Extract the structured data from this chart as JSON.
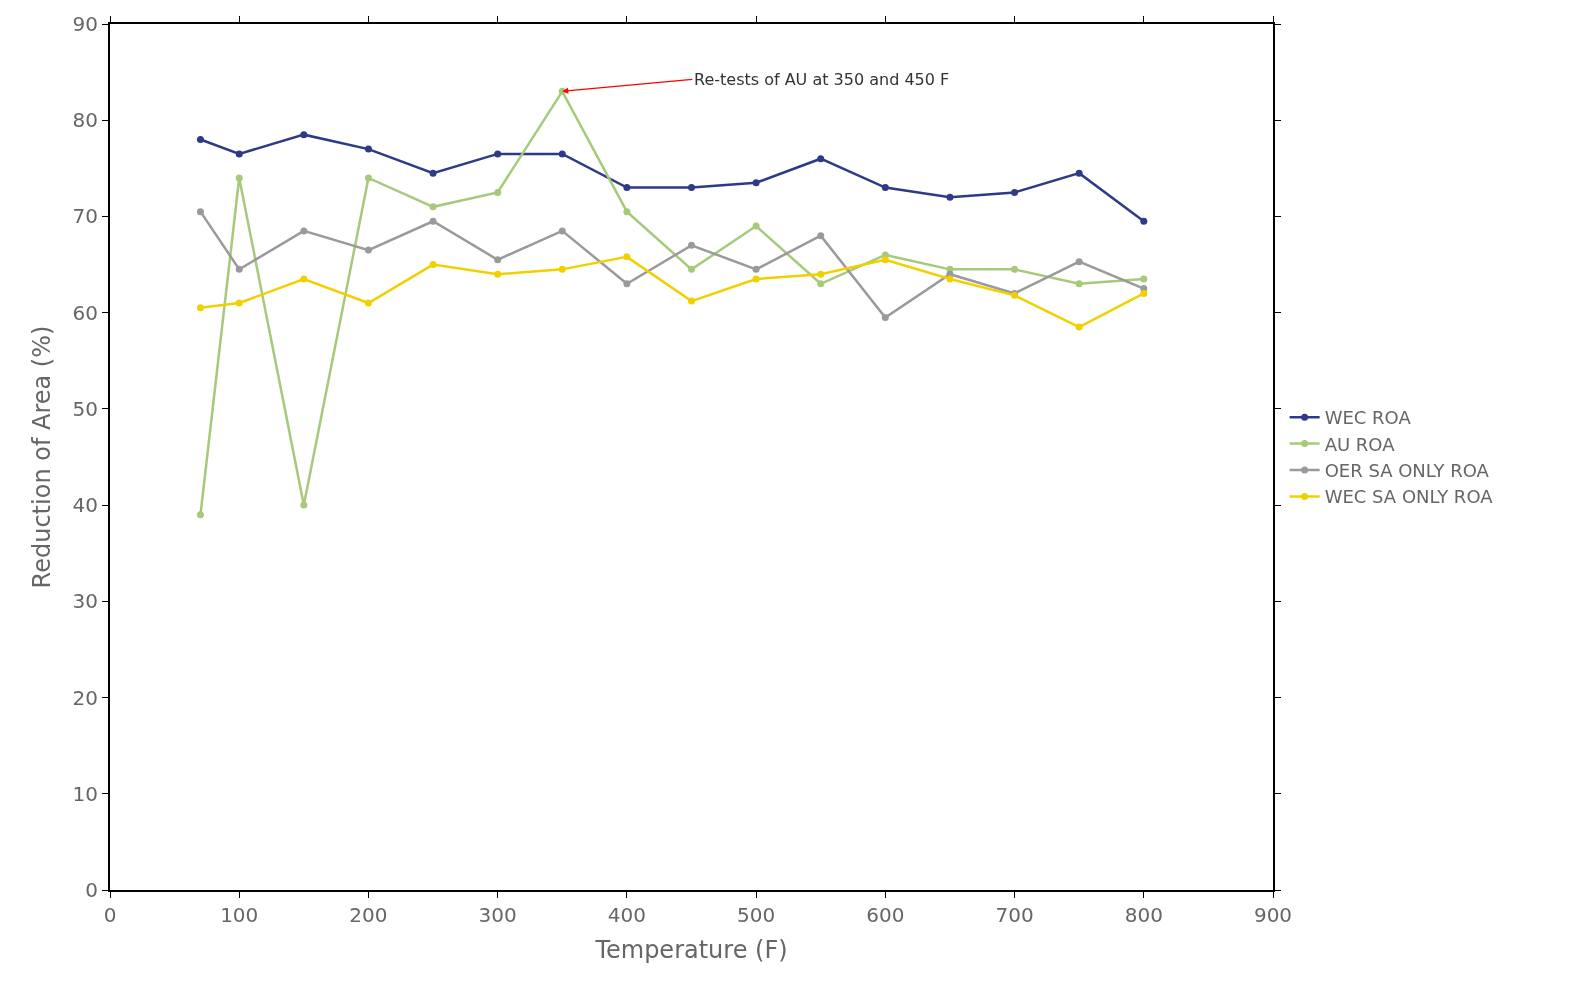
{
  "chart_data": {
    "type": "line",
    "xlabel": "Temperature (F)",
    "ylabel": "Reduction of Area (%)",
    "x": [
      70,
      100,
      150,
      200,
      250,
      300,
      350,
      400,
      450,
      500,
      550,
      600,
      650,
      700,
      750,
      800
    ],
    "series": [
      {
        "name": "WEC ROA",
        "color": "#2e3a87",
        "values": [
          78,
          76.5,
          78.5,
          77,
          74.5,
          76.5,
          76.5,
          73,
          73,
          73.5,
          76,
          73,
          72,
          72.5,
          74.5,
          69.5
        ]
      },
      {
        "name": "AU ROA",
        "color": "#a6c97a",
        "values": [
          39,
          74,
          40,
          74,
          71,
          72.5,
          83,
          70.5,
          64.5,
          69,
          63,
          66,
          64.5,
          64.5,
          63,
          63.5
        ]
      },
      {
        "name": "OER SA ONLY ROA",
        "color": "#9a9a9a",
        "values": [
          70.5,
          64.5,
          68.5,
          66.5,
          69.5,
          65.5,
          68.5,
          63,
          67,
          64.5,
          68,
          59.5,
          64,
          62,
          65.3,
          62.5
        ]
      },
      {
        "name": "WEC SA ONLY ROA",
        "color": "#f2d000",
        "values": [
          60.5,
          61,
          63.5,
          61,
          65,
          64,
          64.5,
          65.8,
          61.2,
          63.5,
          64,
          65.5,
          63.5,
          61.8,
          58.5,
          62
        ]
      }
    ],
    "xlim": [
      0,
      900
    ],
    "xticks": [
      0,
      100,
      200,
      300,
      400,
      500,
      600,
      700,
      800,
      900
    ],
    "ylim": [
      0,
      90
    ],
    "yticks": [
      0,
      10,
      20,
      30,
      40,
      50,
      60,
      70,
      80,
      90
    ],
    "annotations": [
      {
        "text": "Re-tests of AU at 350 and 450 F",
        "x": 350,
        "y": 83
      }
    ],
    "legend": "right",
    "marker": "circle",
    "line_style": "solid"
  }
}
